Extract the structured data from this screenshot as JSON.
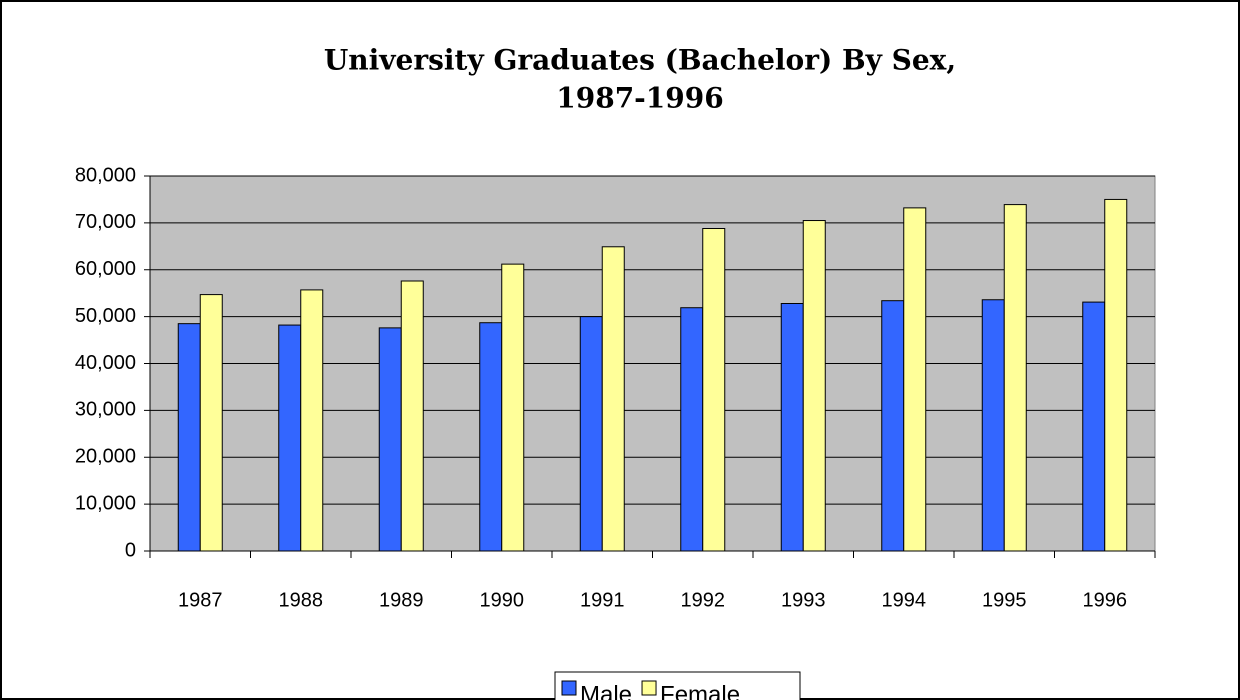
{
  "chart_data": {
    "type": "bar",
    "title": [
      "University Graduates (Bachelor) By Sex,",
      "1987-1996"
    ],
    "categories": [
      "1987",
      "1988",
      "1989",
      "1990",
      "1991",
      "1992",
      "1993",
      "1994",
      "1995",
      "1996"
    ],
    "series": [
      {
        "name": "Male",
        "color": "#3366ff",
        "values": [
          48500,
          48200,
          47600,
          48700,
          50000,
          51900,
          52800,
          53400,
          53600,
          53100
        ]
      },
      {
        "name": "Female",
        "color": "#ffff99",
        "values": [
          54700,
          55700,
          57600,
          61200,
          64900,
          68800,
          70500,
          73200,
          73900,
          75000
        ]
      }
    ],
    "ylim": [
      0,
      80000
    ],
    "yticks": [
      0,
      {
        "value": 10000,
        "label": "10,000"
      },
      {
        "value": 20000,
        "label": "20,000"
      },
      {
        "value": 30000,
        "label": "30,000"
      },
      {
        "value": 40000,
        "label": "40,000"
      },
      {
        "value": 50000,
        "label": "50,000"
      },
      {
        "value": 60000,
        "label": "60,000"
      },
      {
        "value": 70000,
        "label": "70,000"
      },
      {
        "value": 80000,
        "label": "80,000"
      }
    ],
    "grid": true,
    "legend": "bottom",
    "plot_background": "#c0c0c0"
  }
}
